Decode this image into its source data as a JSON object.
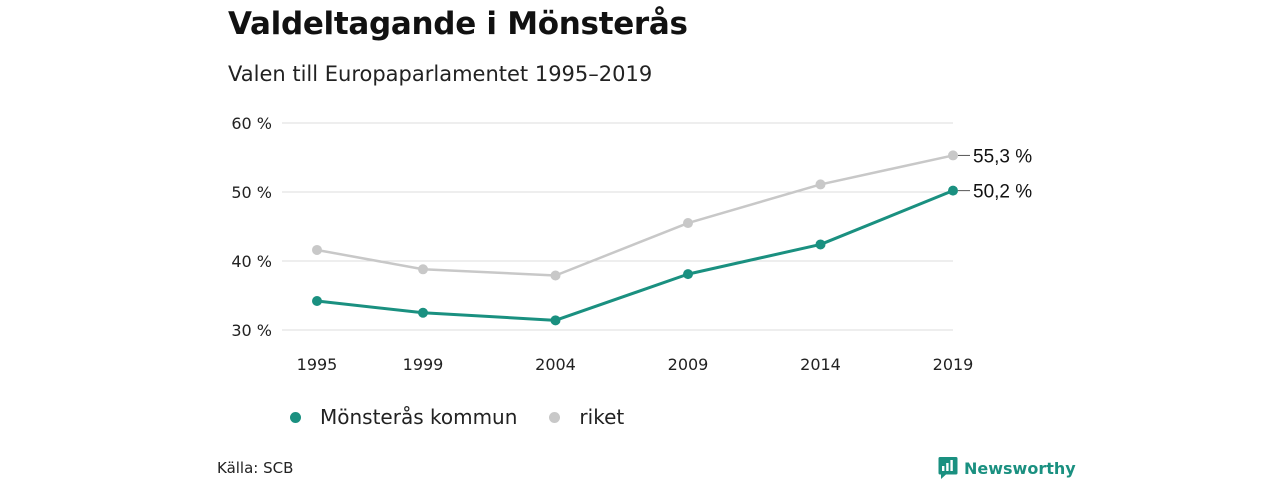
{
  "chart_data": {
    "type": "line",
    "title": "Valdeltagande i Mönsterås",
    "subtitle": "Valen till Europaparlamentet 1995–2019",
    "categories": [
      "1995",
      "1999",
      "2004",
      "2009",
      "2014",
      "2019"
    ],
    "x": [
      1995,
      1999,
      2004,
      2009,
      2014,
      2019
    ],
    "y_ticks": [
      "30 %",
      "40 %",
      "50 %",
      "60 %"
    ],
    "y_tick_values": [
      30,
      40,
      50,
      60
    ],
    "ylim": [
      30,
      60
    ],
    "grid": true,
    "legend_placement": "bottom-left",
    "series": [
      {
        "name": "Mönsterås kommun",
        "color": "#1a9080",
        "values": [
          34.2,
          32.5,
          31.4,
          38.1,
          42.4,
          50.2
        ],
        "end_label": "50,2 %"
      },
      {
        "name": "riket",
        "color": "#c8c8c8",
        "values": [
          41.6,
          38.8,
          37.9,
          45.5,
          51.1,
          55.3
        ],
        "end_label": "55,3 %"
      }
    ]
  },
  "source": "Källa: SCB",
  "brand": {
    "name": "Newsworthy",
    "color": "#1a9080",
    "icon": "bar-chart-bubble-icon"
  }
}
